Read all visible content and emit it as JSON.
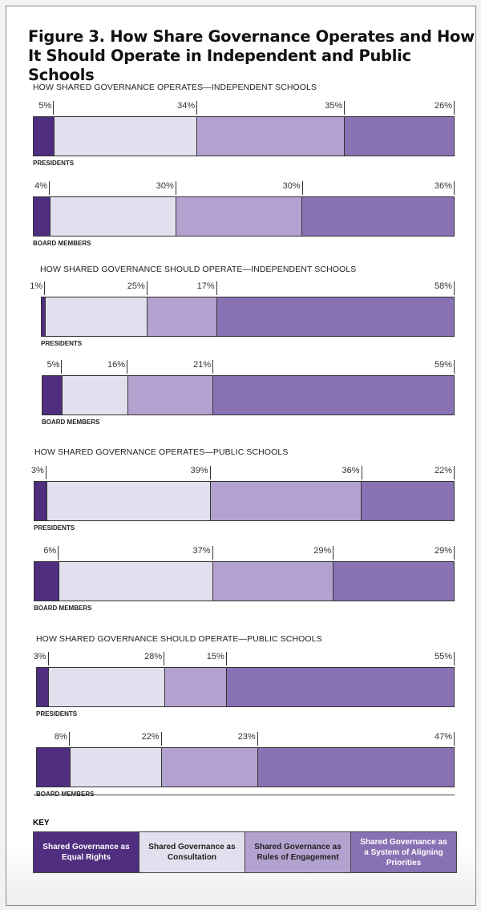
{
  "chart_data": {
    "type": "bar",
    "stacked": "horizontal-100",
    "title": "Figure 3. How Share Governance Operates and How It Should Operate in Independent and Public Schools",
    "key_label": "KEY",
    "legend": [
      "Shared Governance as Equal Rights",
      "Shared Governance as Consultation",
      "Shared Governance as Rules of Engagement",
      "Shared Governance as a System of Aligning Priorities"
    ],
    "colors": [
      "#4f2d7f",
      "#e2dfee",
      "#b3a2cf",
      "#8872b3"
    ],
    "legend_text_colors": [
      "#ffffff",
      "#222222",
      "#222222",
      "#ffffff"
    ],
    "sections": [
      {
        "title": "HOW SHARED GOVERNANCE OPERATES—INDEPENDENT SCHOOLS",
        "rows": [
          {
            "label": "PRESIDENTS",
            "values": [
              5,
              34,
              35,
              26
            ]
          },
          {
            "label": "BOARD MEMBERS",
            "values": [
              4,
              30,
              30,
              36
            ]
          }
        ]
      },
      {
        "title": "HOW SHARED GOVERNANCE SHOULD OPERATE—INDEPENDENT SCHOOLS",
        "rows": [
          {
            "label": "PRESIDENTS",
            "values": [
              1,
              25,
              17,
              58
            ]
          },
          {
            "label": "BOARD MEMBERS",
            "values": [
              5,
              16,
              21,
              59
            ]
          }
        ]
      },
      {
        "title": "HOW SHARED GOVERNANCE OPERATES—PUBLIC SCHOOLS",
        "rows": [
          {
            "label": "PRESIDENTS",
            "values": [
              3,
              39,
              36,
              22
            ]
          },
          {
            "label": "BOARD MEMBERS",
            "values": [
              6,
              37,
              29,
              29
            ]
          }
        ]
      },
      {
        "title": "HOW SHARED GOVERNANCE SHOULD OPERATE—PUBLIC SCHOOLS",
        "rows": [
          {
            "label": "PRESIDENTS",
            "values": [
              3,
              28,
              15,
              55
            ]
          },
          {
            "label": "BOARD MEMBERS",
            "values": [
              8,
              22,
              23,
              47
            ]
          }
        ]
      }
    ]
  }
}
